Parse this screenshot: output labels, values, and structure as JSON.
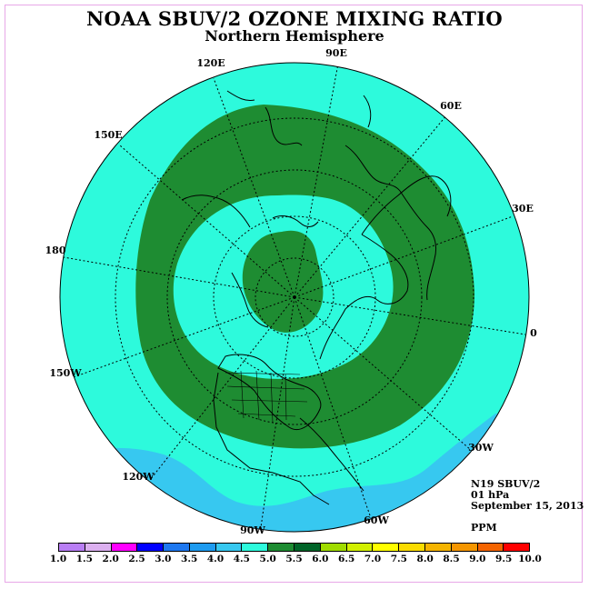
{
  "title": "NOAA SBUV/2 OZONE MIXING RATIO",
  "subtitle": "Northern Hemisphere",
  "longitude_labels": {
    "e90": "90E",
    "e60": "60E",
    "e30": "30E",
    "zero": "0",
    "w30": "30W",
    "w60": "60W",
    "w90": "90W",
    "w120": "120W",
    "w150": "150W",
    "d180": "180",
    "e150": "150E",
    "e120": "120E"
  },
  "info": {
    "instrument": "N19 SBUV/2",
    "level": "01 hPa",
    "date": "September 15, 2013",
    "units": "PPM"
  },
  "colorbar": {
    "ticks": [
      "1.0",
      "1.5",
      "2.0",
      "2.5",
      "3.0",
      "3.5",
      "4.0",
      "4.5",
      "5.0",
      "5.5",
      "6.0",
      "6.5",
      "7.0",
      "7.5",
      "8.0",
      "8.5",
      "9.0",
      "9.5",
      "10.0"
    ],
    "colors": [
      "#b97ef5",
      "#dcb0f0",
      "#ff00ff",
      "#0000ff",
      "#1e78f0",
      "#1e9bf0",
      "#37c8f0",
      "#2dfadc",
      "#1e8c32",
      "#006428",
      "#a0dc00",
      "#d2f000",
      "#ffff00",
      "#fadc00",
      "#f5b400",
      "#f59600",
      "#f56400",
      "#ff0000",
      "#8c5a3c"
    ]
  },
  "map_colors": {
    "background_zone": "#2dfadc",
    "high_zone": "#1e8c32",
    "low_zone": "#37c8f0"
  }
}
